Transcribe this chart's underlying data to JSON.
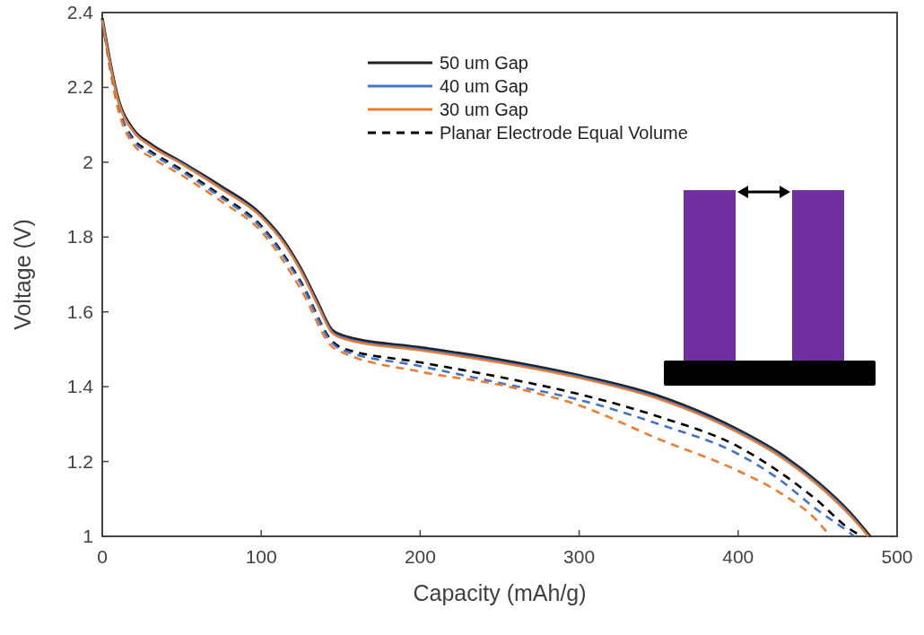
{
  "chart_data": {
    "type": "line",
    "xlabel": "Capacity (mAh/g)",
    "ylabel": "Voltage (V)",
    "xlim": [
      0,
      500
    ],
    "xticks": [
      0,
      100,
      200,
      300,
      400,
      500
    ],
    "ylim": [
      1,
      2.4
    ],
    "yticks": [
      1,
      1.2,
      1.4,
      1.6,
      1.8,
      2,
      2.2,
      2.4
    ],
    "grid": false,
    "legend": "top",
    "marker": "none",
    "series": [
      {
        "name": "50 um Gap",
        "color": "#222222",
        "line_style": "solid",
        "x": [
          0,
          10,
          20,
          30,
          50,
          75,
          100,
          115,
          125,
          135,
          145,
          155,
          200,
          250,
          300,
          350,
          400,
          425,
          450,
          470,
          483
        ],
        "values": [
          2.385,
          2.17,
          2.085,
          2.05,
          2.0,
          1.935,
          1.86,
          1.785,
          1.715,
          1.63,
          1.55,
          1.532,
          1.505,
          1.472,
          1.43,
          1.375,
          1.285,
          1.225,
          1.145,
          1.065,
          1.0
        ]
      },
      {
        "name": "40 um Gap",
        "color": "#4472c4",
        "line_style": "solid",
        "x": [
          0,
          10,
          20,
          30,
          50,
          75,
          100,
          115,
          125,
          135,
          145,
          155,
          200,
          250,
          300,
          350,
          400,
          425,
          450,
          470,
          482
        ],
        "values": [
          2.38,
          2.165,
          2.08,
          2.045,
          1.997,
          1.93,
          1.855,
          1.78,
          1.71,
          1.625,
          1.545,
          1.527,
          1.5,
          1.467,
          1.426,
          1.37,
          1.28,
          1.22,
          1.14,
          1.06,
          1.0
        ]
      },
      {
        "name": "30 um Gap",
        "color": "#ed7d31",
        "line_style": "solid",
        "x": [
          0,
          10,
          20,
          30,
          50,
          75,
          100,
          115,
          125,
          135,
          145,
          155,
          200,
          250,
          300,
          350,
          400,
          425,
          450,
          470,
          482
        ],
        "values": [
          2.38,
          2.165,
          2.08,
          2.045,
          1.995,
          1.928,
          1.853,
          1.778,
          1.708,
          1.622,
          1.542,
          1.524,
          1.497,
          1.464,
          1.423,
          1.367,
          1.277,
          1.217,
          1.137,
          1.057,
          1.0
        ]
      },
      {
        "name": "Planar Electrode Equal Volume",
        "color": "#000000",
        "line_style": "dashed",
        "x": [
          0,
          10,
          20,
          30,
          50,
          75,
          100,
          125,
          145,
          150,
          200,
          250,
          300,
          350,
          400,
          425,
          450,
          470,
          478
        ],
        "values": [
          2.38,
          2.15,
          2.06,
          2.03,
          1.98,
          1.91,
          1.83,
          1.68,
          1.52,
          1.505,
          1.465,
          1.426,
          1.38,
          1.32,
          1.24,
          1.175,
          1.095,
          1.02,
          1.0
        ]
      },
      {
        "color": "#4472c4",
        "line_style": "dashed",
        "x": [
          0,
          10,
          20,
          30,
          50,
          75,
          100,
          125,
          145,
          150,
          200,
          250,
          300,
          350,
          400,
          425,
          450,
          470,
          473
        ],
        "values": [
          2.38,
          2.15,
          2.055,
          2.025,
          1.975,
          1.905,
          1.825,
          1.675,
          1.515,
          1.5,
          1.455,
          1.41,
          1.365,
          1.3,
          1.22,
          1.155,
          1.07,
          1.01,
          1.0
        ]
      },
      {
        "color": "#ed7d31",
        "line_style": "dashed",
        "x": [
          0,
          10,
          20,
          30,
          50,
          75,
          100,
          125,
          145,
          150,
          200,
          250,
          300,
          350,
          400,
          425,
          450,
          458
        ],
        "values": [
          2.38,
          2.14,
          2.045,
          2.015,
          1.965,
          1.895,
          1.815,
          1.66,
          1.505,
          1.494,
          1.44,
          1.405,
          1.35,
          1.26,
          1.175,
          1.12,
          1.04,
          1.0
        ]
      }
    ]
  }
}
